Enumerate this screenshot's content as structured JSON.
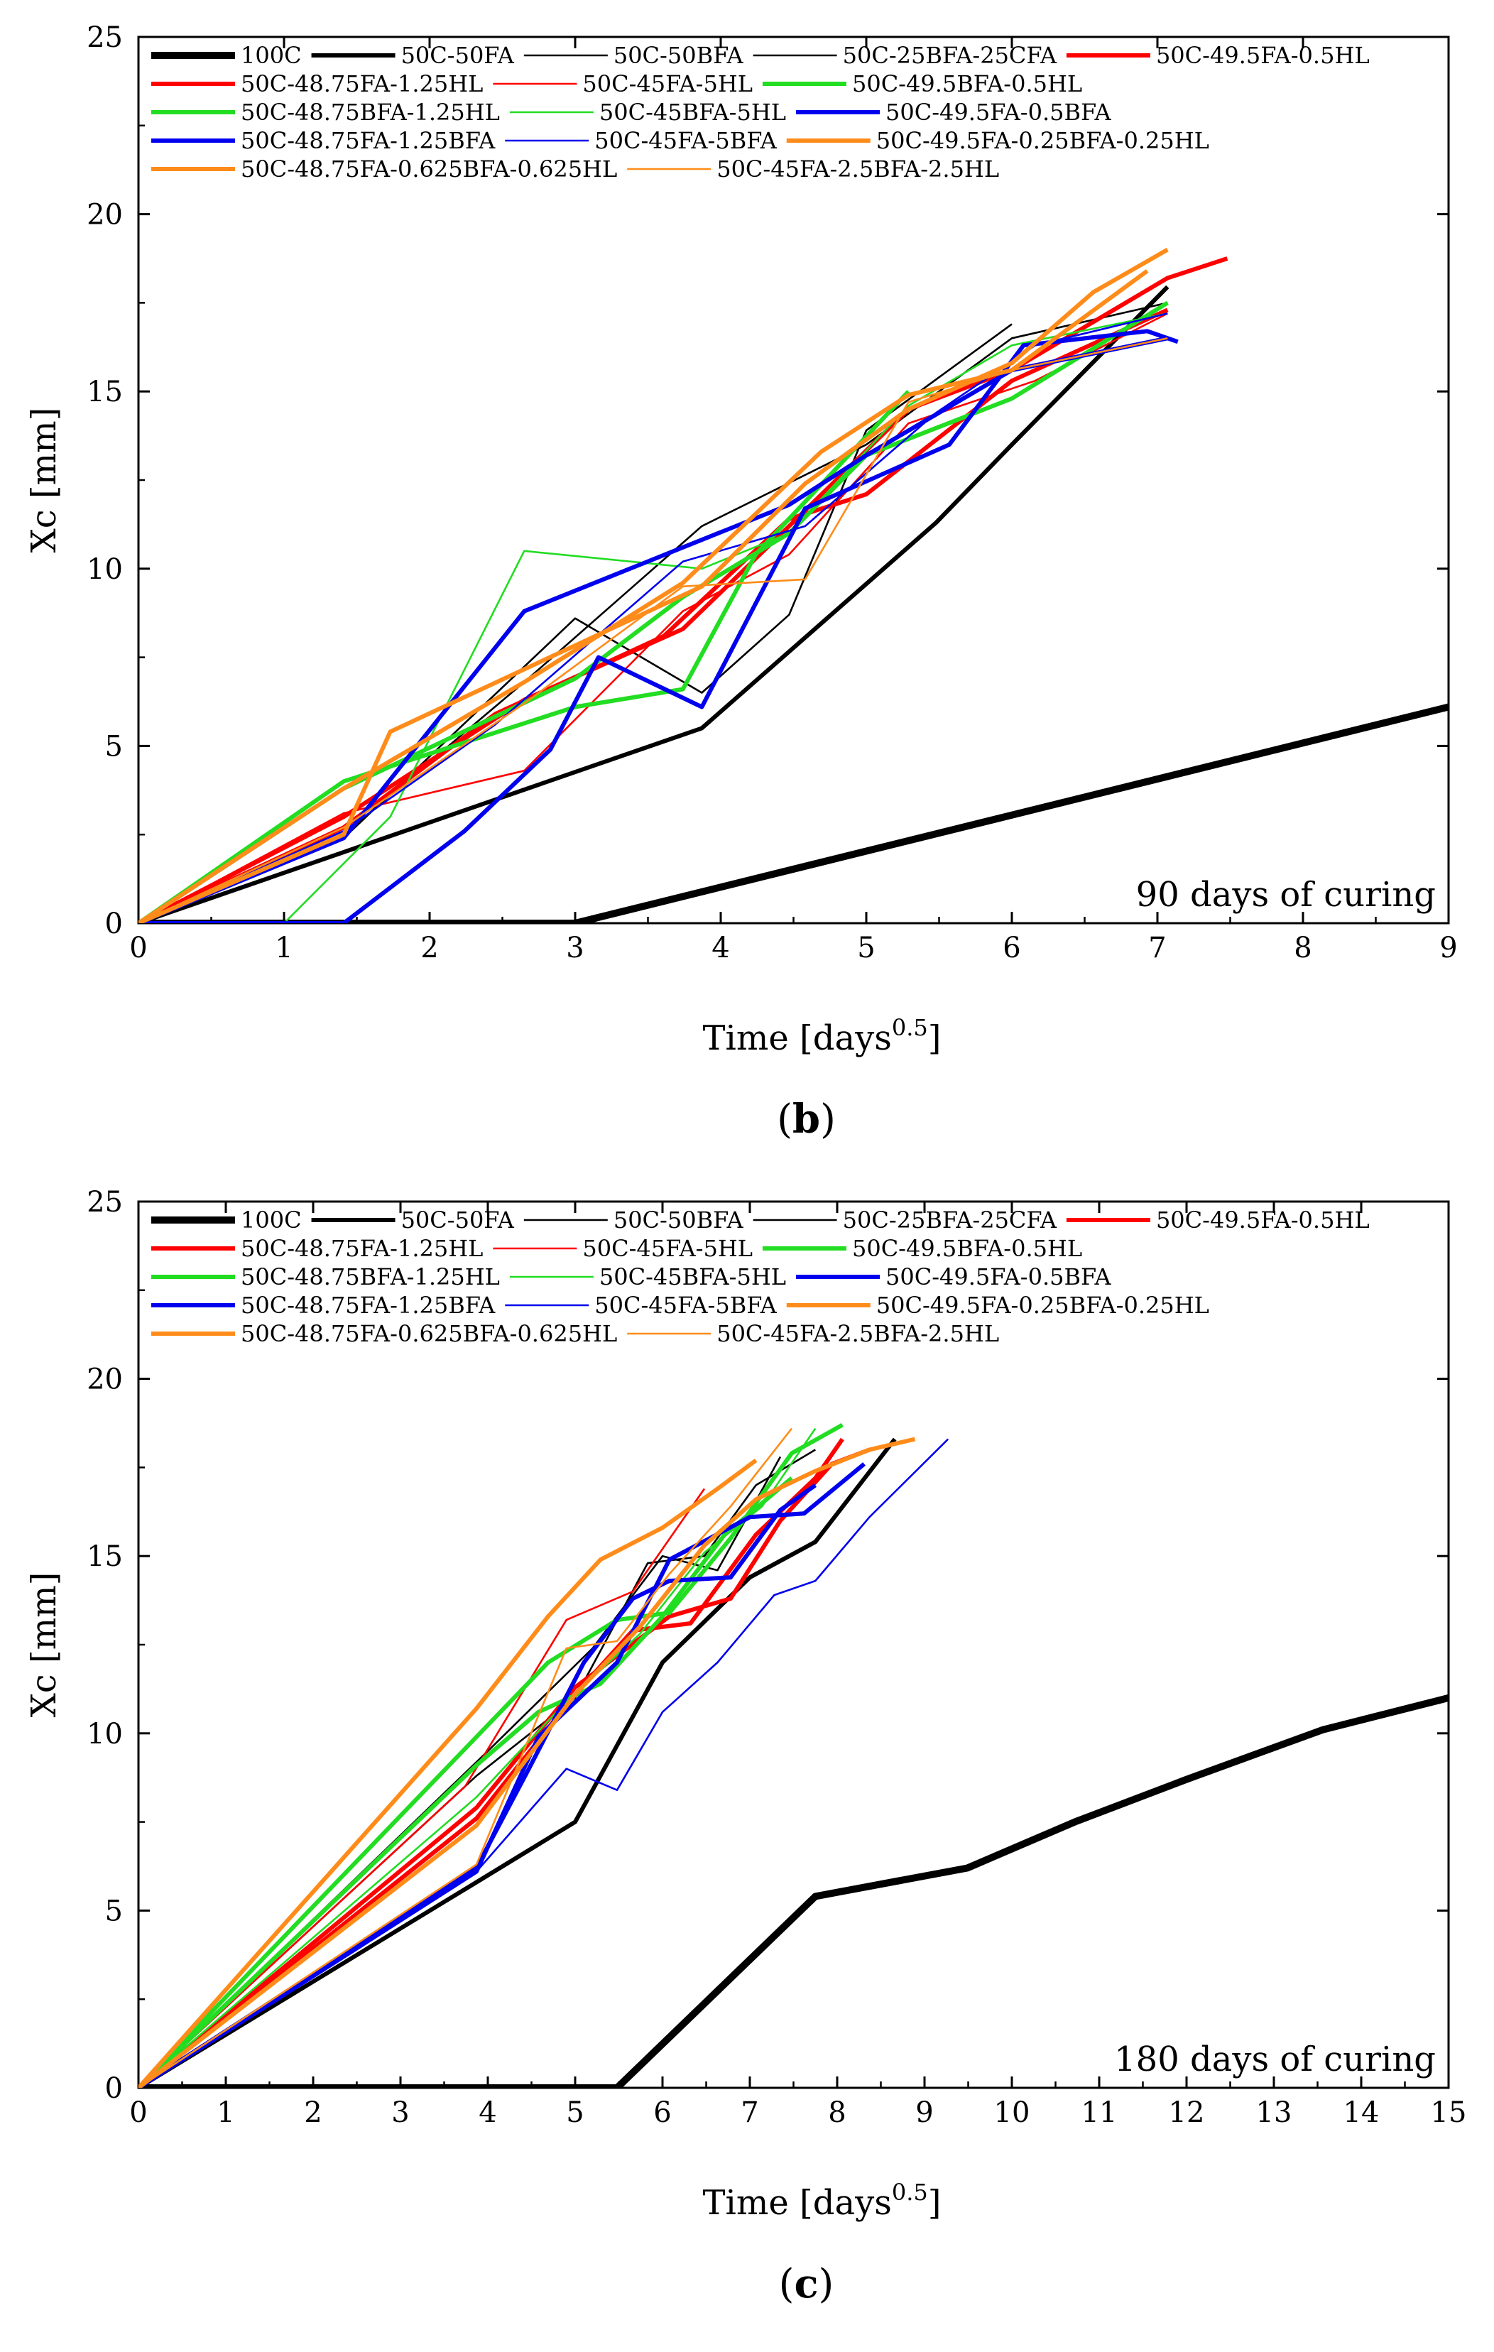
{
  "chart_data": [
    {
      "type": "line",
      "xlabel": "Time [days",
      "xlabel_sup": "0.5",
      "xlabel_suffix": "]",
      "ylabel": "Xc [mm]",
      "xlim": [
        0,
        9
      ],
      "ylim": [
        0,
        25
      ],
      "xticks": [
        0,
        1,
        2,
        3,
        4,
        5,
        6,
        7,
        8,
        9
      ],
      "yticks": [
        0,
        5,
        10,
        15,
        20,
        25
      ],
      "annotation": "90 days of curing",
      "panel_label": "b",
      "grid": false,
      "legend_position": "top",
      "series": [
        {
          "name": "100C",
          "color": "#000000",
          "weight": "thick",
          "x": [
            0,
            3.0,
            9
          ],
          "y": [
            0,
            0,
            6.1
          ]
        },
        {
          "name": "50C-50FA",
          "color": "#000000",
          "weight": "medium",
          "x": [
            0,
            3.87,
            5.48,
            6.0,
            7.07
          ],
          "y": [
            0,
            5.5,
            11.3,
            13.5,
            17.95
          ]
        },
        {
          "name": "50C-50BFA",
          "color": "#000000",
          "weight": "thin",
          "x": [
            0,
            1.41,
            2.65,
            3.87,
            5.0,
            6.0,
            7.07
          ],
          "y": [
            0,
            2.5,
            6.8,
            11.2,
            13.5,
            16.5,
            17.5
          ]
        },
        {
          "name": "50C-25BFA-25CFA",
          "color": "#000000",
          "weight": "thin",
          "x": [
            0,
            1.41,
            3.0,
            3.87,
            4.47,
            5.0,
            6.0
          ],
          "y": [
            0,
            2.4,
            8.6,
            6.5,
            8.7,
            13.9,
            16.9
          ]
        },
        {
          "name": "50C-49.5FA-0.5HL",
          "color": "#ff0000",
          "weight": "medium",
          "x": [
            0,
            1.41,
            2.65,
            3.74,
            4.47,
            5.29,
            6.0,
            7.07,
            7.48
          ],
          "y": [
            0,
            3.0,
            6.3,
            8.3,
            11.2,
            14.5,
            15.6,
            18.2,
            18.75
          ]
        },
        {
          "name": "50C-48.75FA-1.25HL",
          "color": "#ff0000",
          "weight": "medium",
          "x": [
            0,
            1.41,
            2.45,
            3.61,
            4.47,
            5.0,
            6.0,
            7.07
          ],
          "y": [
            0,
            2.7,
            5.9,
            8.1,
            11.4,
            12.1,
            15.3,
            17.3
          ]
        },
        {
          "name": "50C-45FA-5HL",
          "color": "#ff0000",
          "weight": "thin",
          "x": [
            0,
            1.41,
            2.65,
            3.74,
            4.47,
            5.29,
            6.16,
            7.07
          ],
          "y": [
            0,
            3.1,
            4.3,
            8.8,
            10.4,
            14.1,
            15.3,
            17.2
          ]
        },
        {
          "name": "50C-49.5BFA-0.5HL",
          "color": "#22dd22",
          "weight": "medium",
          "x": [
            0,
            1.41,
            3.0,
            3.74,
            4.24,
            5.29
          ],
          "y": [
            0,
            4.0,
            6.1,
            6.6,
            10.4,
            15.0
          ]
        },
        {
          "name": "50C-48.75BFA-1.25HL",
          "color": "#22dd22",
          "weight": "medium",
          "x": [
            0,
            1.41,
            3.0,
            3.74,
            4.47,
            5.0,
            6.0,
            7.07
          ],
          "y": [
            0,
            3.8,
            6.9,
            9.2,
            11.0,
            13.2,
            14.8,
            17.5
          ]
        },
        {
          "name": "50C-45BFA-5HL",
          "color": "#22dd22",
          "weight": "thin",
          "x": [
            1.0,
            1.73,
            2.65,
            3.87,
            4.47,
            5.29,
            6.0,
            7.07
          ],
          "y": [
            0,
            3.0,
            10.5,
            10.0,
            11.0,
            14.6,
            16.3,
            17.2
          ]
        },
        {
          "name": "50C-49.5FA-0.5BFA",
          "color": "#0000ee",
          "weight": "medium",
          "x": [
            0,
            1.41,
            2.24,
            2.83,
            3.16,
            3.87,
            4.58,
            5.57,
            6.08,
            6.93,
            7.14
          ],
          "y": [
            0,
            0,
            2.6,
            4.9,
            7.5,
            6.1,
            11.7,
            13.5,
            16.3,
            16.7,
            16.4
          ]
        },
        {
          "name": "50C-48.75FA-1.25BFA",
          "color": "#0000ee",
          "weight": "medium",
          "x": [
            0,
            1.41,
            2.65,
            3.74,
            4.47,
            5.0,
            6.0,
            7.07
          ],
          "y": [
            0,
            2.4,
            8.8,
            10.6,
            11.8,
            13.2,
            15.6,
            16.5
          ]
        },
        {
          "name": "50C-45FA-5BFA",
          "color": "#0000ee",
          "weight": "thin",
          "x": [
            0,
            1.41,
            2.45,
            3.74,
            4.58,
            5.48,
            6.16,
            7.07
          ],
          "y": [
            0,
            2.6,
            5.6,
            10.2,
            11.2,
            14.4,
            16.3,
            17.2
          ]
        },
        {
          "name": "50C-49.5FA-0.25BFA-0.25HL",
          "color": "#ff8c1a",
          "weight": "medium",
          "x": [
            0,
            1.41,
            1.73,
            3.87,
            4.58,
            5.29,
            6.0,
            6.56,
            7.07
          ],
          "y": [
            0,
            2.5,
            5.4,
            9.5,
            12.4,
            14.5,
            15.8,
            17.8,
            19.0
          ]
        },
        {
          "name": "50C-48.75FA-0.625BFA-0.625HL",
          "color": "#ff8c1a",
          "weight": "medium",
          "x": [
            0,
            1.41,
            2.65,
            3.74,
            4.69,
            5.29,
            6.0,
            6.93
          ],
          "y": [
            0,
            3.8,
            6.8,
            9.6,
            13.3,
            14.9,
            15.6,
            18.4
          ]
        },
        {
          "name": "50C-45FA-2.5BFA-2.5HL",
          "color": "#ff8c1a",
          "weight": "thin",
          "x": [
            0,
            1.41,
            2.65,
            3.74,
            4.58,
            5.29,
            6.0,
            7.07
          ],
          "y": [
            0,
            2.7,
            6.2,
            9.5,
            9.7,
            14.7,
            15.6,
            16.5
          ]
        }
      ]
    },
    {
      "type": "line",
      "xlabel": "Time [days",
      "xlabel_sup": "0.5",
      "xlabel_suffix": "]",
      "ylabel": "Xc [mm]",
      "xlim": [
        0,
        15
      ],
      "ylim": [
        0,
        25
      ],
      "xticks": [
        0,
        1,
        2,
        3,
        4,
        5,
        6,
        7,
        8,
        9,
        10,
        11,
        12,
        13,
        14,
        15
      ],
      "yticks": [
        0,
        5,
        10,
        15,
        20,
        25
      ],
      "annotation": "180 days of curing",
      "panel_label": "c",
      "grid": false,
      "legend_position": "top",
      "series": [
        {
          "name": "100C",
          "color": "#000000",
          "weight": "thick",
          "x": [
            0,
            5.48,
            7.75,
            9.49,
            10.72,
            12.0,
            13.56,
            15.0
          ],
          "y": [
            0,
            0,
            5.4,
            6.2,
            7.5,
            8.7,
            10.1,
            11.0
          ]
        },
        {
          "name": "50C-50FA",
          "color": "#000000",
          "weight": "medium",
          "x": [
            0,
            3.87,
            5.0,
            6.0,
            7.0,
            7.75,
            8.66
          ],
          "y": [
            0,
            5.8,
            7.5,
            12.0,
            14.4,
            15.4,
            18.3
          ]
        },
        {
          "name": "50C-50BFA",
          "color": "#000000",
          "weight": "thin",
          "x": [
            0,
            3.87,
            5.0,
            5.83,
            6.48,
            7.07,
            7.75
          ],
          "y": [
            0,
            8.8,
            11.0,
            14.8,
            15.0,
            17.0,
            18.0
          ]
        },
        {
          "name": "50C-25BFA-25CFA",
          "color": "#000000",
          "weight": "thin",
          "x": [
            0,
            4.0,
            5.2,
            6.0,
            6.63,
            7.35
          ],
          "y": [
            0,
            9.5,
            12.4,
            15.0,
            14.6,
            17.8
          ]
        },
        {
          "name": "50C-49.5FA-0.5HL",
          "color": "#ff0000",
          "weight": "medium",
          "x": [
            0,
            3.87,
            5.0,
            6.08,
            6.78,
            7.35,
            7.94,
            8.37
          ],
          "y": [
            0,
            7.9,
            11.3,
            13.3,
            13.8,
            16.0,
            17.6,
            18.0
          ]
        },
        {
          "name": "50C-48.75FA-1.25HL",
          "color": "#ff0000",
          "weight": "medium",
          "x": [
            0,
            3.87,
            5.0,
            5.66,
            6.32,
            7.07,
            7.75,
            8.06
          ],
          "y": [
            0,
            7.6,
            11.1,
            12.9,
            13.1,
            15.6,
            17.2,
            18.3
          ]
        },
        {
          "name": "50C-45FA-5HL",
          "color": "#ff0000",
          "weight": "thin",
          "x": [
            0,
            3.74,
            4.9,
            5.66,
            6.48
          ],
          "y": [
            0,
            8.5,
            13.2,
            14.0,
            16.9
          ]
        },
        {
          "name": "50C-49.5BFA-0.5HL",
          "color": "#22dd22",
          "weight": "medium",
          "x": [
            0,
            3.87,
            4.69,
            5.48,
            6.08,
            6.78,
            7.48,
            8.06
          ],
          "y": [
            0,
            9.9,
            12.0,
            13.2,
            13.4,
            15.5,
            17.9,
            18.7
          ]
        },
        {
          "name": "50C-48.75BFA-1.25HL",
          "color": "#22dd22",
          "weight": "medium",
          "x": [
            0,
            3.87,
            4.58,
            5.29,
            6.0,
            6.71,
            7.48
          ],
          "y": [
            0,
            9.1,
            10.6,
            11.4,
            13.3,
            15.6,
            17.2
          ]
        },
        {
          "name": "50C-45BFA-5HL",
          "color": "#22dd22",
          "weight": "thin",
          "x": [
            0,
            3.87,
            4.9,
            5.74,
            6.48,
            7.14,
            7.75
          ],
          "y": [
            0,
            8.2,
            10.9,
            12.8,
            15.1,
            16.4,
            18.6
          ]
        },
        {
          "name": "50C-49.5FA-0.5BFA",
          "color": "#0000ee",
          "weight": "medium",
          "x": [
            0,
            3.87,
            4.58,
            5.48,
            6.08,
            7.0,
            7.62,
            8.31
          ],
          "y": [
            0,
            6.1,
            9.9,
            12.0,
            14.9,
            16.1,
            16.2,
            17.6
          ]
        },
        {
          "name": "50C-48.75FA-1.25BFA",
          "color": "#0000ee",
          "weight": "medium",
          "x": [
            0,
            3.87,
            4.47,
            5.1,
            5.66,
            6.08,
            6.78,
            7.35,
            7.75
          ],
          "y": [
            0,
            6.2,
            9.0,
            12.0,
            13.8,
            14.3,
            14.4,
            16.3,
            17.0
          ]
        },
        {
          "name": "50C-45FA-5BFA",
          "color": "#0000ee",
          "weight": "thin",
          "x": [
            0,
            3.87,
            4.9,
            5.48,
            6.0,
            6.63,
            7.28,
            7.75,
            8.37,
            9.27
          ],
          "y": [
            0,
            6.1,
            9.0,
            8.4,
            10.6,
            12.0,
            13.9,
            14.3,
            16.1,
            18.3
          ]
        },
        {
          "name": "50C-49.5FA-0.25BFA-0.25HL",
          "color": "#ff8c1a",
          "weight": "medium",
          "x": [
            0,
            3.87,
            5.0,
            5.74,
            6.48,
            7.07,
            7.75,
            8.37,
            8.89
          ],
          "y": [
            0,
            7.4,
            11.1,
            13.0,
            15.3,
            16.6,
            17.4,
            18.0,
            18.3
          ]
        },
        {
          "name": "50C-48.75FA-0.625BFA-0.625HL",
          "color": "#ff8c1a",
          "weight": "medium",
          "x": [
            0,
            3.87,
            4.69,
            5.29,
            6.0,
            6.63,
            7.07
          ],
          "y": [
            0,
            10.7,
            13.3,
            14.9,
            15.8,
            16.9,
            17.7
          ]
        },
        {
          "name": "50C-45FA-2.5BFA-2.5HL",
          "color": "#ff8c1a",
          "weight": "thin",
          "x": [
            0,
            3.87,
            4.9,
            5.48,
            6.08,
            6.78,
            7.48
          ],
          "y": [
            0,
            6.3,
            12.4,
            12.6,
            14.5,
            16.4,
            18.6
          ]
        }
      ]
    }
  ]
}
